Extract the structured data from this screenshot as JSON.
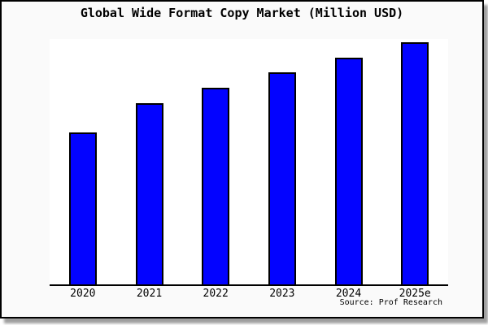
{
  "window": {
    "canvas_bg": "#ffffff",
    "figure_bg": "#fafafa",
    "figure_border_color": "#000000",
    "shadow_color": "#aaaaaa"
  },
  "chart_data": {
    "type": "bar",
    "title": "Global Wide Format Copy Market (Million USD)",
    "categories": [
      "2020",
      "2021",
      "2022",
      "2023",
      "2024",
      "2025e"
    ],
    "values": [
      62.7,
      75.0,
      81.3,
      87.7,
      93.7,
      100
    ],
    "value_note": "chart shows no numeric y-axis labels or gridlines; values are relative bar heights indexed to 2025e = 100",
    "xlabel": "",
    "ylabel": "",
    "ylim": [
      0,
      100.7
    ],
    "grid": false,
    "legend": null,
    "bar_color": "#0303ff",
    "bar_border_color": "#000000",
    "plot_bg": "#ffffff",
    "axis_line_color": "#000000",
    "source_note": "Source: Prof Research"
  }
}
